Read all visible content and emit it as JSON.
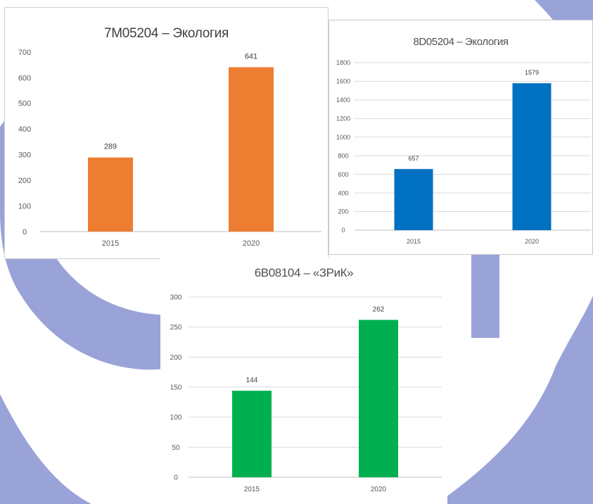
{
  "theme": {
    "decor_color": "#9aa3d8",
    "grid_color": "#d9d9d9",
    "axis_color": "#bfbfbf"
  },
  "chart_data": [
    {
      "type": "bar",
      "title": "7M05204 – Экология",
      "categories": [
        "2015",
        "2020"
      ],
      "values": [
        289,
        641
      ],
      "data_labels": [
        "289",
        "641"
      ],
      "color": "#ed7d31",
      "ylim": [
        0,
        700
      ],
      "y_ticks": [
        0,
        100,
        200,
        300,
        400,
        500,
        600,
        700
      ],
      "y_tick_labels": [
        "0",
        "100",
        "200",
        "300",
        "400",
        "500",
        "600",
        "700"
      ],
      "grid": false,
      "legend": "none",
      "xlabel": "",
      "ylabel": ""
    },
    {
      "type": "bar",
      "title": "8D05204 – Экология",
      "categories": [
        "2015",
        "2020"
      ],
      "values": [
        657,
        1579
      ],
      "data_labels": [
        "657",
        "1579"
      ],
      "color": "#0070c0",
      "ylim": [
        0,
        1800
      ],
      "y_ticks": [
        0,
        200,
        400,
        600,
        800,
        1000,
        1200,
        1400,
        1600,
        1800
      ],
      "y_tick_labels": [
        "0",
        "200",
        "400",
        "600",
        "800",
        "1000",
        "1200",
        "1400",
        "1600",
        "1800"
      ],
      "grid": true,
      "legend": "none",
      "xlabel": "",
      "ylabel": ""
    },
    {
      "type": "bar",
      "title": "6B08104 – «ЗРиК»",
      "categories": [
        "2015",
        "2020"
      ],
      "values": [
        144,
        262
      ],
      "data_labels": [
        "144",
        "262"
      ],
      "color": "#00b050",
      "ylim": [
        0,
        300
      ],
      "y_ticks": [
        0,
        50,
        100,
        150,
        200,
        250,
        300
      ],
      "y_tick_labels": [
        "0",
        "50",
        "100",
        "150",
        "200",
        "250",
        "300"
      ],
      "grid": true,
      "legend": "none",
      "xlabel": "",
      "ylabel": ""
    }
  ]
}
